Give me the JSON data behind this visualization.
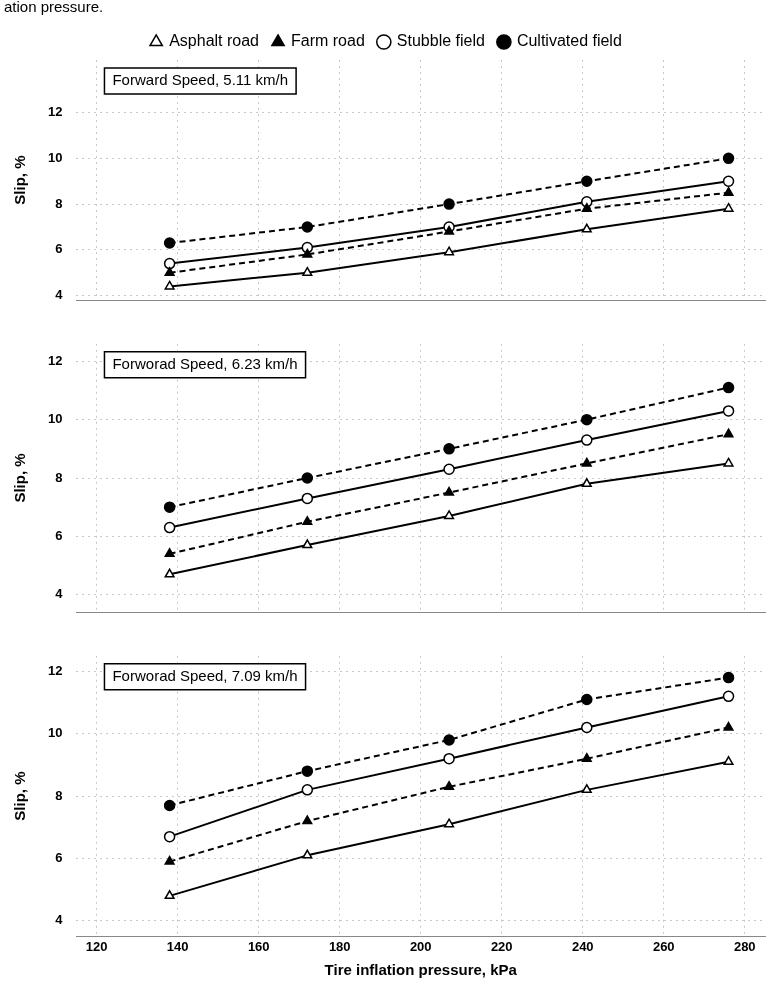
{
  "chart_data": [
    {
      "type": "line",
      "title": "Forward Speed, 5.11 km/h",
      "ylabel": "Slip, %",
      "annotations": [
        "ation pressure."
      ],
      "x": [
        138,
        172,
        207,
        241,
        276
      ],
      "xlim": [
        115,
        285
      ],
      "xticks": [
        120,
        140,
        160,
        180,
        200,
        220,
        240,
        260,
        280
      ],
      "ylim": [
        3.8,
        14.3
      ],
      "yticks": [
        4,
        6,
        8,
        10,
        12
      ],
      "tick_labels": "y",
      "grid": true,
      "legend": "top",
      "series": [
        {
          "name": "Asphalt road",
          "color": "#000000",
          "marker": "triangle",
          "line_style": "solid",
          "values": [
            4.4,
            5.0,
            5.9,
            6.9,
            7.8
          ]
        },
        {
          "name": "Farm road",
          "color": "#000000",
          "marker": "triangle",
          "line_style": "dashed",
          "values": [
            5.0,
            5.8,
            6.8,
            7.8,
            8.5
          ]
        },
        {
          "name": "Stubble field",
          "color": "#000000",
          "marker": "circle",
          "line_style": "solid",
          "values": [
            5.4,
            6.1,
            7.0,
            8.1,
            9.0
          ]
        },
        {
          "name": "Cultivated field",
          "color": "#000000",
          "marker": "circle",
          "line_style": "dashed",
          "values": [
            6.3,
            7.0,
            8.0,
            9.0,
            10.0
          ]
        }
      ]
    },
    {
      "type": "line",
      "title": "Forworad Speed, 6.23 km/h",
      "ylabel": "Slip, %",
      "x": [
        138,
        172,
        207,
        241,
        276
      ],
      "xlim": [
        115,
        285
      ],
      "xticks": [
        120,
        140,
        160,
        180,
        200,
        220,
        240,
        260,
        280
      ],
      "ylim": [
        3.4,
        12.6
      ],
      "yticks": [
        4,
        6,
        8,
        10,
        12
      ],
      "tick_labels": "y",
      "grid": true,
      "series": [
        {
          "color": "#000000",
          "marker": "triangle",
          "line_style": "solid",
          "values": [
            4.7,
            5.7,
            6.7,
            7.8,
            8.5
          ]
        },
        {
          "color": "#000000",
          "marker": "triangle",
          "line_style": "dashed",
          "values": [
            5.4,
            6.5,
            7.5,
            8.5,
            9.5
          ]
        },
        {
          "color": "#000000",
          "marker": "circle",
          "line_style": "solid",
          "values": [
            6.3,
            7.3,
            8.3,
            9.3,
            10.3
          ]
        },
        {
          "color": "#000000",
          "marker": "circle",
          "line_style": "dashed",
          "values": [
            7.0,
            8.0,
            9.0,
            10.0,
            11.1
          ]
        }
      ]
    },
    {
      "type": "line",
      "title": "Forworad Speed, 7.09 km/h",
      "ylabel": "Slip, %",
      "xlabel": "Tire inflation pressure, kPa",
      "x": [
        138,
        172,
        207,
        241,
        276
      ],
      "xlim": [
        115,
        285
      ],
      "xticks": [
        120,
        140,
        160,
        180,
        200,
        220,
        240,
        260,
        280
      ],
      "ylim": [
        3.5,
        12.5
      ],
      "yticks": [
        4,
        6,
        8,
        10,
        12
      ],
      "grid": true,
      "series": [
        {
          "color": "#000000",
          "marker": "triangle",
          "line_style": "solid",
          "values": [
            4.8,
            6.1,
            7.1,
            8.2,
            9.1
          ]
        },
        {
          "color": "#000000",
          "marker": "triangle",
          "line_style": "dashed",
          "values": [
            5.9,
            7.2,
            8.3,
            9.2,
            10.2
          ]
        },
        {
          "color": "#000000",
          "marker": "circle",
          "line_style": "solid",
          "values": [
            6.7,
            8.2,
            9.2,
            10.2,
            11.2
          ]
        },
        {
          "color": "#000000",
          "marker": "circle",
          "line_style": "dashed",
          "values": [
            7.7,
            8.8,
            9.8,
            11.1,
            11.8
          ]
        }
      ]
    }
  ]
}
